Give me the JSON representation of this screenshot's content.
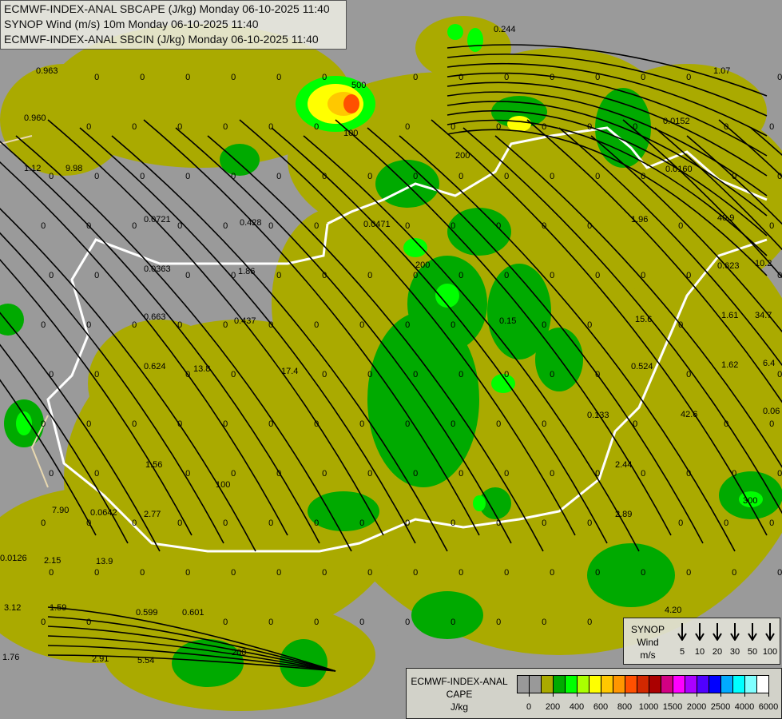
{
  "title_lines": [
    "ECMWF-INDEX-ANAL SBCAPE (J/kg) Monday 06-10-2025 11:40",
    "SYNOP Wind (m/s) 10m Monday 06-10-2025 11:40",
    "ECMWF-INDEX-ANAL SBCIN (J/kg) Monday 06-10-2025 11:40"
  ],
  "synop_legend": {
    "label_lines": [
      "SYNOP",
      "Wind",
      "m/s"
    ],
    "speeds": [
      "5",
      "10",
      "20",
      "30",
      "50",
      "100"
    ]
  },
  "cape_legend": {
    "label_lines": [
      "ECMWF-INDEX-ANAL",
      "CAPE",
      "J/kg"
    ],
    "colors": [
      "#999999",
      "#999999",
      "#aaaa00",
      "#00aa00",
      "#00ff00",
      "#aaff00",
      "#ffff00",
      "#ffc800",
      "#ff9600",
      "#ff5000",
      "#d22800",
      "#aa0000",
      "#d20082",
      "#ff00ff",
      "#aa00ff",
      "#5000ff",
      "#0000ff",
      "#00aaff",
      "#00ffff",
      "#80ffff",
      "#ffffff"
    ],
    "tick_labels": [
      "0",
      "200",
      "400",
      "600",
      "800",
      "1000",
      "1500",
      "2000",
      "2500",
      "4000",
      "6000"
    ]
  },
  "colors": {
    "background": "#9a9a9a",
    "cape_100": "#aaaa00",
    "cape_200": "#00aa00",
    "cape_400": "#00ff00",
    "cape_500": "#aaff00",
    "cape_600": "#ffff00",
    "cape_700": "#ffc800",
    "cape_900": "#ff5000",
    "border": "#ffffff",
    "streamline": "#000000"
  },
  "station_values": [
    "0.963",
    "0.960",
    "1.12",
    "9.98",
    "0.0721",
    "0.428",
    "0.0471",
    "0.0363",
    "1.86",
    "0.663",
    "0.437",
    "0.624",
    "13.8",
    "17.4",
    "1.56",
    "7.90",
    "0.0642",
    "2.77",
    "0.0126",
    "2.15",
    "13.9",
    "3.12",
    "1.59",
    "0.599",
    "0.601",
    "1.76",
    "2.91",
    "5.54",
    "0.244",
    "1.07",
    "0.0152",
    "0.0160",
    "1.96",
    "40.9",
    "0.623",
    "10.2",
    "15.6",
    "1.61",
    "34.7",
    "0.524",
    "1.62",
    "6.4",
    "0.133",
    "42.6",
    "0.06",
    "2.44",
    "2.89",
    "4.20",
    "0.15"
  ],
  "contour_labels": [
    "100",
    "200",
    "300",
    "500"
  ]
}
